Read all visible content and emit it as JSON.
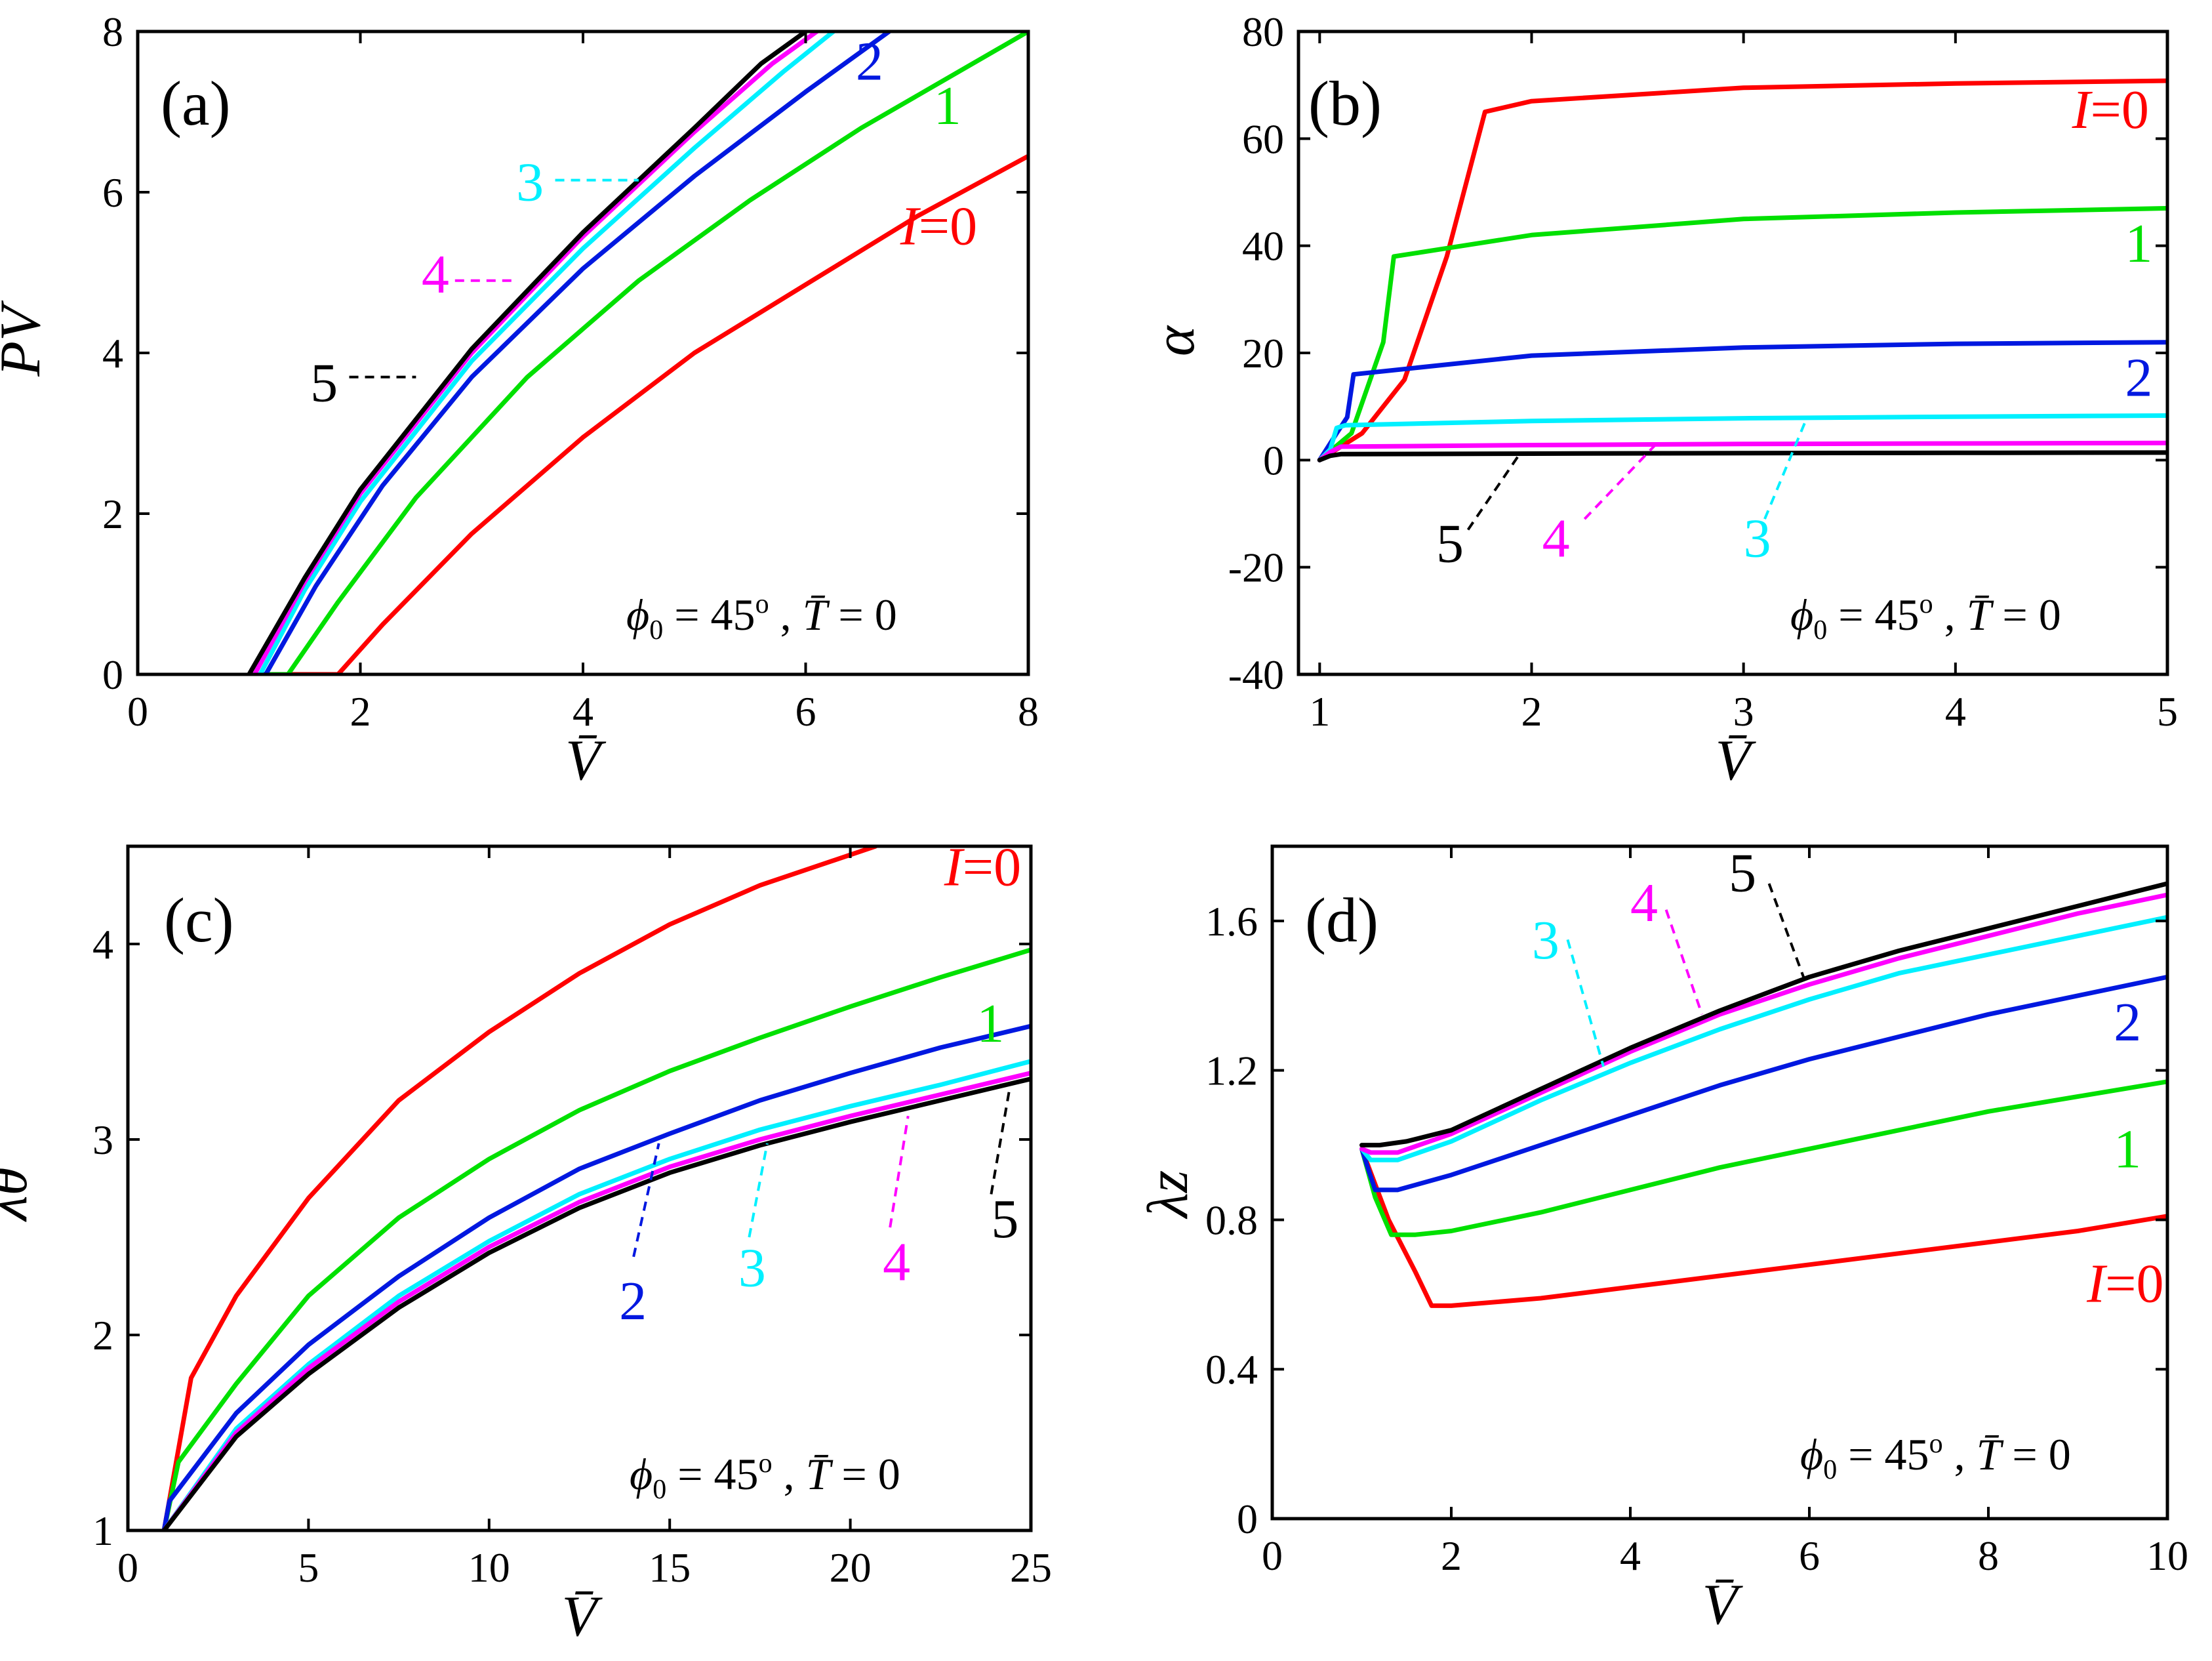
{
  "colors": {
    "I0": "#ff0000",
    "I1": "#00e000",
    "I2": "#0018e0",
    "I3": "#00f0ff",
    "I4": "#ff00ff",
    "I5": "#000000"
  },
  "chart_data": [
    {
      "type": "line",
      "panel_label": "(a)",
      "xlabel": "V̄",
      "ylabel": "P̄V̄",
      "xlim": [
        0,
        8
      ],
      "ylim": [
        0,
        8
      ],
      "xticks": [
        0,
        2,
        4,
        6,
        8
      ],
      "yticks": [
        0,
        2,
        4,
        6,
        8
      ],
      "annotation": {
        "phi": "ϕ",
        "sub": "0",
        "eq1": " = 45",
        "deg": "o",
        "comma": " , ",
        "T": "T̄",
        "eq2": " = 0"
      },
      "series": [
        {
          "name": "I=0",
          "label": "I=0",
          "color_key": "I0",
          "x": [
            1.0,
            1.8,
            2.2,
            3,
            4,
            5,
            6,
            7,
            8
          ],
          "y": [
            0,
            0,
            0.62,
            1.75,
            2.95,
            4.0,
            4.85,
            5.7,
            6.45
          ]
        },
        {
          "name": "1",
          "label": "1",
          "color_key": "I1",
          "x": [
            1.0,
            1.35,
            1.8,
            2.5,
            3.5,
            4.5,
            5.5,
            6.5,
            8.0
          ],
          "y": [
            0,
            0,
            0.9,
            2.2,
            3.7,
            4.9,
            5.9,
            6.8,
            8.0
          ]
        },
        {
          "name": "2",
          "label": "2",
          "color_key": "I2",
          "x": [
            1.05,
            1.15,
            1.6,
            2.2,
            3.0,
            4.0,
            5.0,
            6.0,
            6.75
          ],
          "y": [
            0,
            0,
            1.1,
            2.35,
            3.7,
            5.05,
            6.2,
            7.25,
            8.0
          ]
        },
        {
          "name": "3",
          "label": "3",
          "color_key": "I3",
          "x": [
            1.0,
            1.1,
            1.5,
            2.0,
            3.0,
            4.0,
            5.0,
            5.8,
            6.25
          ],
          "y": [
            0,
            0,
            1.05,
            2.15,
            3.9,
            5.3,
            6.55,
            7.5,
            8.0
          ]
        },
        {
          "name": "4",
          "label": "4",
          "color_key": "I4",
          "x": [
            1.0,
            1.05,
            1.5,
            2.0,
            3.0,
            4.0,
            5.0,
            5.7,
            6.1
          ],
          "y": [
            0,
            0,
            1.15,
            2.25,
            4.0,
            5.45,
            6.75,
            7.6,
            8.0
          ]
        },
        {
          "name": "5",
          "label": "5",
          "color_key": "I5",
          "x": [
            1.0,
            1.5,
            2.0,
            3.0,
            4.0,
            5.0,
            5.6,
            6.0
          ],
          "y": [
            0,
            1.2,
            2.3,
            4.05,
            5.5,
            6.8,
            7.6,
            8.0
          ]
        }
      ],
      "labels": [
        {
          "text": "I=0",
          "color_key": "I0",
          "x": 6.85,
          "y": 5.35,
          "italicI": true
        },
        {
          "text": "1",
          "color_key": "I1",
          "x": 7.15,
          "y": 6.85
        },
        {
          "text": "2",
          "color_key": "I2",
          "x": 6.45,
          "y": 7.4
        },
        {
          "text": "3",
          "color_key": "I3",
          "x": 3.4,
          "y": 5.9,
          "lead": [
            3.75,
            6.15,
            4.5,
            6.15
          ]
        },
        {
          "text": "4",
          "color_key": "I4",
          "x": 2.55,
          "y": 4.75,
          "lead": [
            2.85,
            4.9,
            3.4,
            4.9
          ]
        },
        {
          "text": "5",
          "color_key": "I5",
          "x": 1.55,
          "y": 3.4,
          "lead": [
            1.9,
            3.7,
            2.5,
            3.7
          ]
        }
      ]
    },
    {
      "type": "line",
      "panel_label": "(b)",
      "xlabel": "V̄",
      "ylabel": "α",
      "xlim": [
        0.9,
        5
      ],
      "ylim": [
        -40,
        80
      ],
      "xticks": [
        1,
        2,
        3,
        4,
        5
      ],
      "yticks": [
        -40,
        -20,
        0,
        20,
        40,
        60,
        80
      ],
      "annotation": {
        "phi": "ϕ",
        "sub": "0",
        "eq1": " = 45",
        "deg": "o",
        "comma": " , ",
        "T": "T̄",
        "eq2": " = 0"
      },
      "series": [
        {
          "name": "I=0",
          "label": "I=0",
          "color_key": "I0",
          "x": [
            1.0,
            1.2,
            1.4,
            1.6,
            1.78,
            2.0,
            3.0,
            4.0,
            5.0
          ],
          "y": [
            0,
            5,
            15,
            38,
            65,
            67,
            69.5,
            70.3,
            70.8
          ]
        },
        {
          "name": "1",
          "label": "1",
          "color_key": "I1",
          "x": [
            1.0,
            1.15,
            1.3,
            1.35,
            2.0,
            3.0,
            4.0,
            5.0
          ],
          "y": [
            0,
            5,
            22,
            38,
            42,
            45,
            46.2,
            47
          ]
        },
        {
          "name": "2",
          "label": "2",
          "color_key": "I2",
          "x": [
            1.0,
            1.08,
            1.13,
            1.16,
            2.0,
            3.0,
            4.0,
            5.0
          ],
          "y": [
            0,
            5,
            8,
            16,
            19.5,
            21,
            21.7,
            22
          ]
        },
        {
          "name": "3",
          "label": "3",
          "color_key": "I3",
          "x": [
            1.0,
            1.05,
            1.08,
            1.12,
            2.0,
            3.0,
            4.0,
            5.0
          ],
          "y": [
            0,
            2,
            6,
            6.5,
            7.3,
            7.8,
            8.1,
            8.3
          ]
        },
        {
          "name": "4",
          "label": "4",
          "color_key": "I4",
          "x": [
            1.0,
            1.05,
            1.1,
            2.0,
            3.0,
            4.0,
            5.0
          ],
          "y": [
            0,
            1.5,
            2.5,
            2.8,
            3.0,
            3.1,
            3.2
          ]
        },
        {
          "name": "5",
          "label": "5",
          "color_key": "I5",
          "x": [
            1.0,
            1.05,
            1.1,
            2.0,
            3.0,
            4.0,
            5.0
          ],
          "y": [
            0,
            0.8,
            1.1,
            1.2,
            1.3,
            1.35,
            1.4
          ]
        }
      ],
      "labels": [
        {
          "text": "I=0",
          "color_key": "I0",
          "x": 4.55,
          "y": 62,
          "italicI": true
        },
        {
          "text": "1",
          "color_key": "I1",
          "x": 4.8,
          "y": 37
        },
        {
          "text": "2",
          "color_key": "I2",
          "x": 4.8,
          "y": 12
        },
        {
          "text": "3",
          "color_key": "I3",
          "x": 3.0,
          "y": -18,
          "lead": [
            3.1,
            -11,
            3.3,
            8
          ]
        },
        {
          "text": "4",
          "color_key": "I4",
          "x": 2.05,
          "y": -18,
          "lead": [
            2.25,
            -11,
            2.6,
            3.5
          ]
        },
        {
          "text": "5",
          "color_key": "I5",
          "x": 1.55,
          "y": -19,
          "lead": [
            1.7,
            -13,
            1.95,
            1.5
          ]
        }
      ]
    },
    {
      "type": "line",
      "panel_label": "(c)",
      "xlabel": "V̄",
      "ylabel": "λθ",
      "xlim": [
        0,
        25
      ],
      "ylim": [
        1,
        4.5
      ],
      "xticks": [
        0,
        5,
        10,
        15,
        20,
        25
      ],
      "yticks": [
        1,
        2,
        3,
        4
      ],
      "annotation": {
        "phi": "ϕ",
        "sub": "0",
        "eq1": " = 45",
        "deg": "o",
        "comma": " , ",
        "T": "T̄",
        "eq2": " = 0"
      },
      "series": [
        {
          "name": "I=0",
          "label": "I=0",
          "color_key": "I0",
          "x": [
            1,
            1.75,
            3,
            5,
            7.5,
            10,
            12.5,
            15,
            17.5,
            20.7
          ],
          "y": [
            1,
            1.78,
            2.2,
            2.7,
            3.2,
            3.55,
            3.85,
            4.1,
            4.3,
            4.5
          ]
        },
        {
          "name": "1",
          "label": "1",
          "color_key": "I1",
          "x": [
            1,
            1.4,
            3,
            5,
            7.5,
            10,
            12.5,
            15,
            17.5,
            20,
            22.5,
            25
          ],
          "y": [
            1,
            1.35,
            1.75,
            2.2,
            2.6,
            2.9,
            3.15,
            3.35,
            3.52,
            3.68,
            3.83,
            3.97
          ]
        },
        {
          "name": "2",
          "label": "2",
          "color_key": "I2",
          "x": [
            1,
            1.15,
            3,
            5,
            7.5,
            10,
            12.5,
            15,
            17.5,
            20,
            22.5,
            25
          ],
          "y": [
            1,
            1.15,
            1.6,
            1.95,
            2.3,
            2.6,
            2.85,
            3.03,
            3.2,
            3.34,
            3.47,
            3.58
          ]
        },
        {
          "name": "3",
          "label": "3",
          "color_key": "I3",
          "x": [
            1,
            3,
            5,
            7.5,
            10,
            12.5,
            15,
            17.5,
            20,
            22.5,
            25
          ],
          "y": [
            1,
            1.52,
            1.85,
            2.2,
            2.48,
            2.72,
            2.9,
            3.05,
            3.17,
            3.28,
            3.4
          ]
        },
        {
          "name": "4",
          "label": "4",
          "color_key": "I4",
          "x": [
            1,
            3,
            5,
            7.5,
            10,
            12.5,
            15,
            17.5,
            20,
            22.5,
            25
          ],
          "y": [
            1,
            1.5,
            1.83,
            2.17,
            2.45,
            2.68,
            2.86,
            3.0,
            3.12,
            3.23,
            3.34
          ]
        },
        {
          "name": "5",
          "label": "5",
          "color_key": "I5",
          "x": [
            1,
            3,
            5,
            7.5,
            10,
            12.5,
            15,
            17.5,
            20,
            22.5,
            25
          ],
          "y": [
            1,
            1.48,
            1.8,
            2.14,
            2.42,
            2.65,
            2.83,
            2.97,
            3.09,
            3.2,
            3.31
          ]
        }
      ],
      "labels": [
        {
          "text": "I=0",
          "color_key": "I0",
          "x": 22.6,
          "y": 4.3,
          "italicI": true
        },
        {
          "text": "1",
          "color_key": "I1",
          "x": 23.5,
          "y": 3.5
        },
        {
          "text": "2",
          "color_key": "I2",
          "x": 13.6,
          "y": 2.08,
          "lead": [
            14.0,
            2.4,
            14.7,
            2.98
          ]
        },
        {
          "text": "3",
          "color_key": "I3",
          "x": 16.9,
          "y": 2.25,
          "lead": [
            17.2,
            2.5,
            17.7,
            2.98
          ]
        },
        {
          "text": "4",
          "color_key": "I4",
          "x": 20.9,
          "y": 2.28,
          "lead": [
            21.1,
            2.55,
            21.6,
            3.12
          ]
        },
        {
          "text": "5",
          "color_key": "I5",
          "x": 23.9,
          "y": 2.5,
          "lead": [
            23.9,
            2.72,
            24.4,
            3.25
          ]
        }
      ]
    },
    {
      "type": "line",
      "panel_label": "(d)",
      "xlabel": "V̄",
      "ylabel": "λz",
      "xlim": [
        0,
        10
      ],
      "ylim": [
        0,
        1.8
      ],
      "xticks": [
        0,
        2,
        4,
        6,
        8,
        10
      ],
      "yticks": [
        0,
        0.4,
        0.8,
        1.2,
        1.6
      ],
      "annotation": {
        "phi": "ϕ",
        "sub": "0",
        "eq1": " = 45",
        "deg": "o",
        "comma": " , ",
        "T": "T̄",
        "eq2": " = 0"
      },
      "series": [
        {
          "name": "I=0",
          "label": "I=0",
          "color_key": "I0",
          "x": [
            1.0,
            1.3,
            1.6,
            1.78,
            2.0,
            3.0,
            4.0,
            5.0,
            6.0,
            7.0,
            8.0,
            9.0,
            10.0
          ],
          "y": [
            0.99,
            0.8,
            0.66,
            0.57,
            0.57,
            0.59,
            0.62,
            0.65,
            0.68,
            0.71,
            0.74,
            0.77,
            0.81
          ]
        },
        {
          "name": "1",
          "label": "1",
          "color_key": "I1",
          "x": [
            1.0,
            1.15,
            1.33,
            1.6,
            2.0,
            3.0,
            4.0,
            5.0,
            6.0,
            7.0,
            8.0,
            9.0,
            10.0
          ],
          "y": [
            0.99,
            0.86,
            0.76,
            0.76,
            0.77,
            0.82,
            0.88,
            0.94,
            0.99,
            1.04,
            1.09,
            1.13,
            1.17
          ]
        },
        {
          "name": "2",
          "label": "2",
          "color_key": "I2",
          "x": [
            1.0,
            1.08,
            1.15,
            1.4,
            2.0,
            3.0,
            4.0,
            5.0,
            6.0,
            7.0,
            8.0,
            9.0,
            10.0
          ],
          "y": [
            0.99,
            0.93,
            0.88,
            0.88,
            0.92,
            1.0,
            1.08,
            1.16,
            1.23,
            1.29,
            1.35,
            1.4,
            1.45
          ]
        },
        {
          "name": "3",
          "label": "3",
          "color_key": "I3",
          "x": [
            1.0,
            1.1,
            1.4,
            2.0,
            3.0,
            4.0,
            5.0,
            6.0,
            7.0,
            8.0,
            9.0,
            10.0
          ],
          "y": [
            0.99,
            0.96,
            0.96,
            1.01,
            1.12,
            1.22,
            1.31,
            1.39,
            1.46,
            1.51,
            1.56,
            1.61
          ]
        },
        {
          "name": "4",
          "label": "4",
          "color_key": "I4",
          "x": [
            1.0,
            1.1,
            1.4,
            2.0,
            3.0,
            4.0,
            5.0,
            6.0,
            7.0,
            8.0,
            9.0,
            10.0
          ],
          "y": [
            0.99,
            0.98,
            0.98,
            1.03,
            1.14,
            1.25,
            1.35,
            1.43,
            1.5,
            1.56,
            1.62,
            1.67
          ]
        },
        {
          "name": "5",
          "label": "5",
          "color_key": "I5",
          "x": [
            1.0,
            1.2,
            1.5,
            2.0,
            3.0,
            4.0,
            5.0,
            6.0,
            7.0,
            8.0,
            9.0,
            10.0
          ],
          "y": [
            1.0,
            1.0,
            1.01,
            1.04,
            1.15,
            1.26,
            1.36,
            1.45,
            1.52,
            1.58,
            1.64,
            1.7
          ]
        }
      ],
      "labels": [
        {
          "text": "I=0",
          "color_key": "I0",
          "x": 9.1,
          "y": 0.58,
          "italicI": true
        },
        {
          "text": "1",
          "color_key": "I1",
          "x": 9.4,
          "y": 0.94
        },
        {
          "text": "2",
          "color_key": "I2",
          "x": 9.4,
          "y": 1.28
        },
        {
          "text": "3",
          "color_key": "I3",
          "x": 2.9,
          "y": 1.5,
          "lead": [
            3.3,
            1.55,
            3.7,
            1.21
          ]
        },
        {
          "text": "4",
          "color_key": "I4",
          "x": 4.0,
          "y": 1.6,
          "lead": [
            4.4,
            1.63,
            4.8,
            1.35
          ]
        },
        {
          "text": "5",
          "color_key": "I5",
          "x": 5.1,
          "y": 1.68,
          "lead": [
            5.55,
            1.7,
            5.95,
            1.44
          ]
        }
      ]
    }
  ]
}
